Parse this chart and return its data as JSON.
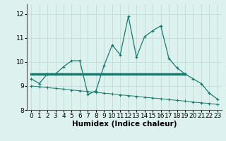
{
  "main_line_x": [
    0,
    1,
    2,
    3,
    4,
    5,
    6,
    7,
    8,
    9,
    10,
    11,
    12,
    13,
    14,
    15,
    16,
    17,
    18,
    19,
    20,
    21,
    22,
    23
  ],
  "main_line_y": [
    9.3,
    9.1,
    9.5,
    9.5,
    9.8,
    10.05,
    10.05,
    8.65,
    8.8,
    9.85,
    10.7,
    10.3,
    11.9,
    10.2,
    11.05,
    11.3,
    11.5,
    10.15,
    9.75,
    9.5,
    9.3,
    9.1,
    8.7,
    8.45
  ],
  "upper_line_x": [
    0,
    19
  ],
  "upper_line_y": [
    9.5,
    9.5
  ],
  "lower_line_x": [
    0,
    1,
    2,
    3,
    4,
    5,
    6,
    7,
    8,
    9,
    10,
    11,
    12,
    13,
    14,
    15,
    16,
    17,
    18,
    19,
    20,
    21,
    22,
    23
  ],
  "lower_line_y": [
    9.0,
    8.97,
    8.93,
    8.9,
    8.87,
    8.83,
    8.8,
    8.77,
    8.73,
    8.7,
    8.67,
    8.63,
    8.6,
    8.57,
    8.53,
    8.5,
    8.47,
    8.43,
    8.4,
    8.37,
    8.33,
    8.3,
    8.27,
    8.23
  ],
  "line_color": "#1a7a6e",
  "bg_color": "#ddf2ee",
  "grid_color": "#b8d8d4",
  "xlim": [
    -0.5,
    23.5
  ],
  "ylim": [
    8.0,
    12.4
  ],
  "yticks": [
    8,
    9,
    10,
    11,
    12
  ],
  "xticks": [
    0,
    1,
    2,
    3,
    4,
    5,
    6,
    7,
    8,
    9,
    10,
    11,
    12,
    13,
    14,
    15,
    16,
    17,
    18,
    19,
    20,
    21,
    22,
    23
  ],
  "xlabel": "Humidex (Indice chaleur)",
  "xlabel_fontsize": 7.5,
  "tick_fontsize": 6.5
}
